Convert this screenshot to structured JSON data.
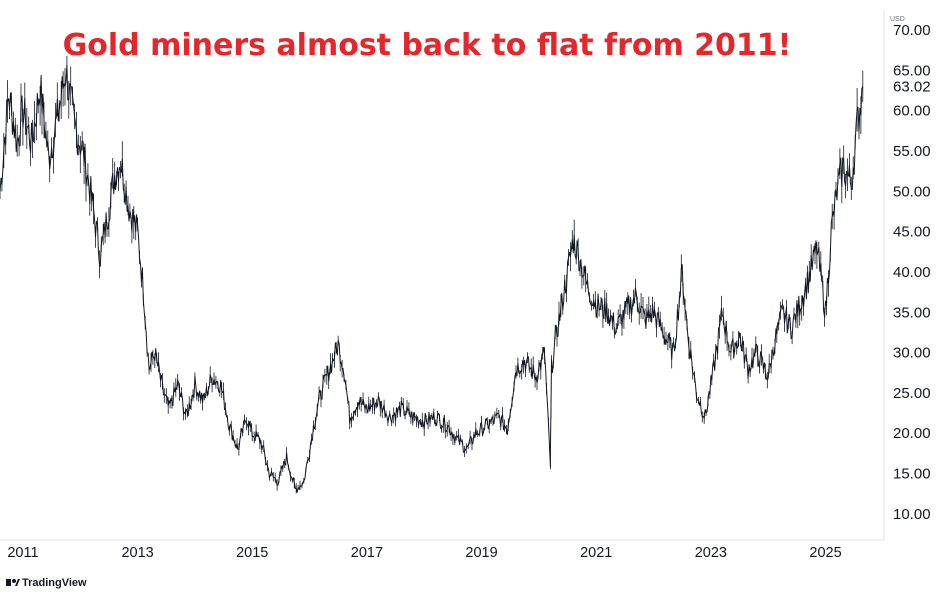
{
  "chart_data": {
    "type": "line",
    "title": "Gold miners almost back to flat from 2011!",
    "title_color": "#e5262b",
    "line_color": "#131722",
    "grid": false,
    "y_unit": "USD",
    "ylim": [
      7,
      72
    ],
    "yticks": [
      "10.00",
      "15.00",
      "20.00",
      "25.00",
      "30.00",
      "35.00",
      "40.00",
      "45.00",
      "50.00",
      "55.00",
      "60.00",
      "65.00",
      "70.00"
    ],
    "last_value_label": "63.02",
    "x_range": [
      2010.6,
      2025.95
    ],
    "xticks": [
      "2011",
      "2013",
      "2015",
      "2017",
      "2019",
      "2021",
      "2023",
      "2025"
    ],
    "series": [
      {
        "x": [
          2010.6,
          2010.75,
          2010.9,
          2011.0,
          2011.15,
          2011.3,
          2011.45,
          2011.6,
          2011.75,
          2011.9,
          2012.05,
          2012.2,
          2012.35,
          2012.45,
          2012.6,
          2012.7,
          2012.85,
          2013.0,
          2013.1,
          2013.2,
          2013.3,
          2013.45,
          2013.55,
          2013.7,
          2013.85,
          2014.0,
          2014.15,
          2014.3,
          2014.45,
          2014.6,
          2014.75,
          2014.9,
          2015.0,
          2015.15,
          2015.3,
          2015.45,
          2015.6,
          2015.75,
          2015.9,
          2016.0,
          2016.1,
          2016.2,
          2016.35,
          2016.5,
          2016.6,
          2016.7,
          2016.85,
          2017.0,
          2017.2,
          2017.4,
          2017.6,
          2017.8,
          2018.0,
          2018.2,
          2018.4,
          2018.6,
          2018.75,
          2018.9,
          2019.1,
          2019.3,
          2019.45,
          2019.6,
          2019.75,
          2019.95,
          2020.1,
          2020.2,
          2020.22,
          2020.3,
          2020.45,
          2020.6,
          2020.7,
          2020.85,
          2021.0,
          2021.2,
          2021.35,
          2021.5,
          2021.7,
          2021.85,
          2022.0,
          2022.2,
          2022.35,
          2022.5,
          2022.6,
          2022.75,
          2022.9,
          2023.05,
          2023.2,
          2023.35,
          2023.5,
          2023.65,
          2023.8,
          2024.0,
          2024.1,
          2024.25,
          2024.4,
          2024.55,
          2024.7,
          2024.85,
          2025.0,
          2025.1,
          2025.2,
          2025.3,
          2025.45,
          2025.55,
          2025.65
        ],
        "values": [
          50,
          62,
          56,
          60,
          56,
          63,
          54,
          59,
          65,
          58,
          55,
          49,
          42,
          46,
          52,
          54,
          48,
          45,
          38,
          28,
          30,
          25,
          23,
          26,
          22,
          26,
          24,
          27,
          26,
          21,
          18,
          22,
          20,
          19,
          15,
          14,
          17,
          13,
          14,
          18,
          22,
          25,
          28,
          31,
          28,
          22,
          24,
          23,
          24,
          22,
          23,
          22,
          21.5,
          22,
          21,
          19,
          18,
          20,
          21,
          22,
          20.5,
          28,
          29,
          27,
          30,
          16,
          28,
          32,
          38,
          44,
          42,
          38,
          36,
          35,
          33,
          35,
          37,
          34,
          35,
          32,
          30,
          40,
          32,
          25,
          22,
          28,
          35,
          30,
          32,
          28,
          30,
          27,
          31,
          35,
          33,
          36,
          39,
          43,
          35,
          45,
          50,
          53,
          51,
          58,
          63.02
        ]
      }
    ]
  },
  "branding": {
    "watermark_text": "TradingView"
  }
}
